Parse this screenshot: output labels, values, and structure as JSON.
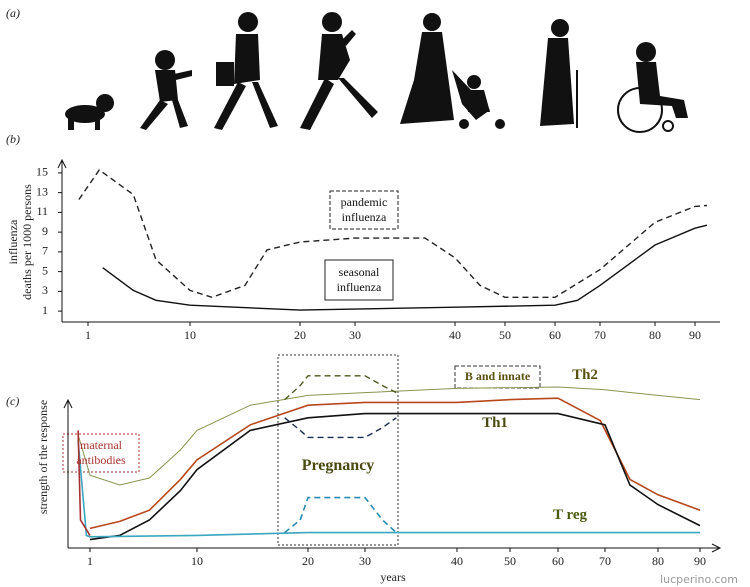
{
  "figure": {
    "panel_a_label": "(a)",
    "watermark": "lucperino.com"
  },
  "chart_data": [
    {
      "type": "line",
      "title": "(b)",
      "ylabel": [
        "influenza",
        "deaths per 1000 persons"
      ],
      "xticks": [
        1,
        10,
        20,
        30,
        40,
        50,
        60,
        70,
        80,
        90
      ],
      "ylim": [
        0,
        16
      ],
      "yticks": [
        1,
        3,
        5,
        7,
        9,
        11,
        13,
        15
      ],
      "series": [
        {
          "name": "pandemic influenza",
          "color": "#222222",
          "dash": true,
          "x": [
            0.2,
            2,
            5,
            7,
            10,
            12,
            15,
            17,
            20,
            30,
            37,
            40,
            45,
            50,
            60,
            70,
            80,
            90,
            93
          ],
          "values": [
            12.3,
            15.3,
            12.8,
            6.2,
            3.1,
            2.4,
            3.6,
            7.2,
            8.0,
            8.4,
            8.4,
            6.4,
            3.6,
            2.4,
            2.4,
            5.2,
            10.0,
            11.6,
            11.7
          ]
        },
        {
          "name": "seasonal influenza",
          "color": "#111111",
          "dash": false,
          "x": [
            2.3,
            5,
            7,
            10,
            20,
            40,
            60,
            65,
            70,
            80,
            90,
            93
          ],
          "values": [
            5.4,
            3.1,
            2.1,
            1.6,
            1.1,
            1.4,
            1.6,
            2.1,
            3.6,
            7.7,
            9.4,
            9.7
          ]
        }
      ]
    },
    {
      "type": "line",
      "title": "(c)",
      "ylabel": "strength of the response",
      "xlabel": "years",
      "xticks": [
        1,
        10,
        20,
        30,
        40,
        50,
        60,
        70,
        80,
        90
      ],
      "ylim": [
        0,
        130
      ],
      "annotation": "Pregnancy",
      "series": [
        {
          "name": "Th2",
          "color": "#8a9450",
          "width": 1,
          "dash": false,
          "x": [
            0,
            1,
            3.5,
            6,
            8.6,
            10,
            14.8,
            20,
            30,
            40,
            60,
            70,
            80,
            90
          ],
          "values": [
            81,
            52,
            45,
            50,
            70,
            84,
            102,
            109,
            111,
            114,
            115,
            113,
            109,
            106
          ]
        },
        {
          "name": "B and innate",
          "color": "#b8481c",
          "width": 1.6,
          "dash": false,
          "x": [
            1,
            3.5,
            6,
            8.6,
            10,
            14.8,
            20,
            30,
            40,
            50,
            60,
            69,
            74.7,
            80,
            90
          ],
          "values": [
            14,
            19,
            27,
            49,
            63,
            88,
            102,
            104,
            104,
            106,
            107,
            91,
            49,
            38,
            27
          ]
        },
        {
          "name": "Th1",
          "color": "#111111",
          "width": 1.6,
          "dash": false,
          "x": [
            1,
            3.5,
            6,
            8.6,
            10,
            14.8,
            20,
            30,
            40,
            60,
            70,
            74.7,
            80,
            90
          ],
          "values": [
            6,
            9,
            20,
            41,
            56,
            84,
            93,
            96,
            96,
            96,
            88,
            45,
            31,
            16
          ]
        },
        {
          "name": "T reg",
          "color": "#3aa6c0",
          "width": 1.6,
          "dash": false,
          "x": [
            0,
            0.7,
            1,
            10,
            20,
            40,
            90
          ],
          "values": [
            77,
            9,
            8,
            9,
            11,
            11,
            11
          ]
        },
        {
          "name": "maternal antibodies",
          "color": "#a83030",
          "width": 1.6,
          "dash": false,
          "x": [
            0,
            0.2,
            1
          ],
          "values": [
            84,
            20,
            9
          ]
        },
        {
          "color": "#4a5a20",
          "width": 1.4,
          "dash": true,
          "x": [
            17.9,
            19.3,
            20,
            30,
            31.9,
            33.4
          ],
          "values": [
            106,
            116,
            123,
            123,
            116,
            111
          ]
        },
        {
          "color": "#1a2a50",
          "width": 1.4,
          "dash": true,
          "x": [
            17.9,
            19.3,
            20,
            30,
            31.9,
            33.4
          ],
          "values": [
            93,
            84,
            79,
            79,
            86,
            93
          ]
        },
        {
          "color": "#2a8ab0",
          "width": 1.6,
          "dash": true,
          "x": [
            17.9,
            19.3,
            20,
            30,
            31.9,
            33.4
          ],
          "values": [
            11,
            20,
            36,
            36,
            20,
            11
          ]
        }
      ]
    }
  ]
}
